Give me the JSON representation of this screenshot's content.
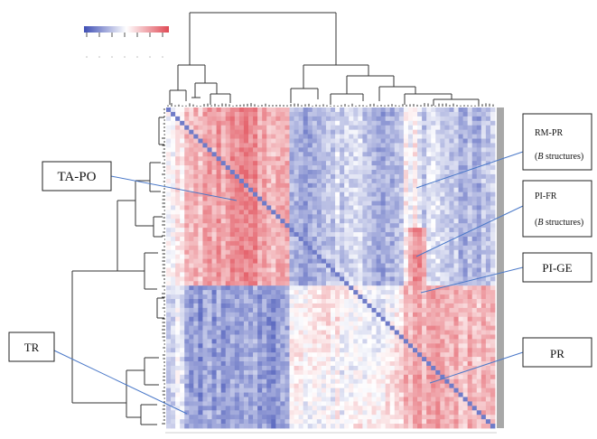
{
  "chart_data": {
    "type": "heatmap",
    "title": "",
    "xlabel": "",
    "ylabel": "",
    "colorscale": {
      "low_color": "#3f4fb5",
      "mid_color": "#ffffff",
      "high_color": "#e04a55"
    },
    "row_clusters": [
      "TA-PO",
      "TR"
    ],
    "column_clusters": [
      "TA-PO",
      "TR"
    ],
    "annotations": [
      {
        "id": "ta-po",
        "lines": [
          {
            "text": "TA-PO"
          }
        ]
      },
      {
        "id": "rm-pr",
        "lines": [
          {
            "text": "RM-PR"
          },
          {
            "text": "(",
            "italic": "B",
            "rest": " structures)"
          }
        ]
      },
      {
        "id": "pi-fr",
        "lines": [
          {
            "text": "PI-FR"
          },
          {
            "text": "(",
            "italic": "B",
            "rest": " structures)"
          }
        ]
      },
      {
        "id": "pi-ge",
        "lines": [
          {
            "text": "PI-GE"
          }
        ]
      },
      {
        "id": "tr",
        "lines": [
          {
            "text": "TR"
          }
        ]
      },
      {
        "id": "pr",
        "lines": [
          {
            "text": "PR"
          }
        ]
      }
    ],
    "colors": {
      "sidebar": "#a8a8a8",
      "leader": "#4a78c8",
      "dendrogram": "#333333"
    }
  }
}
